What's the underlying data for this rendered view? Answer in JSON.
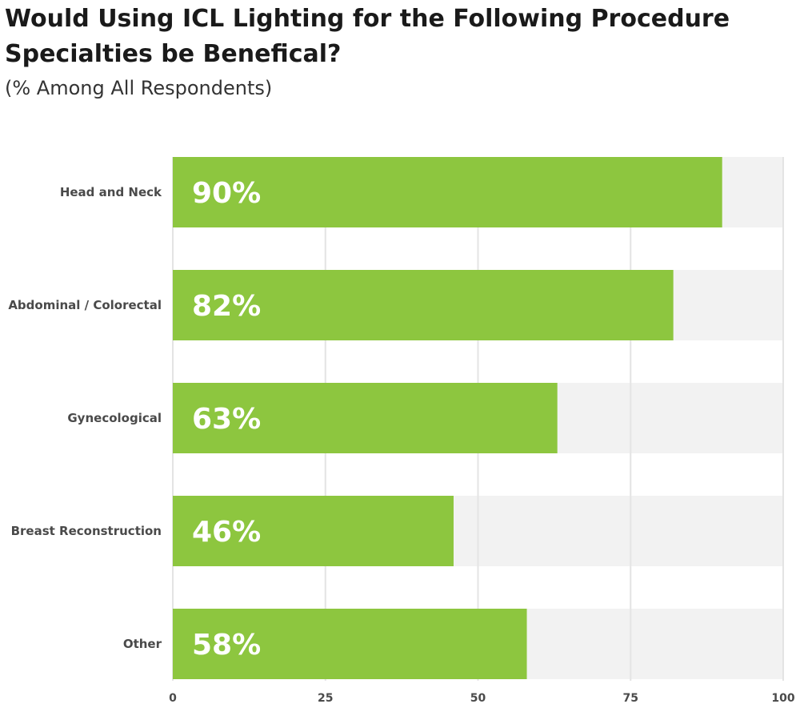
{
  "title": "Would Using ICL Lighting for the Following Procedure Specialties be Benefical?",
  "subtitle": "(% Among All Respondents)",
  "colors": {
    "bar": "#8dc63f",
    "track": "#f2f2f2",
    "grid": "#e4e4e4"
  },
  "chart_data": {
    "type": "bar",
    "orientation": "horizontal",
    "categories": [
      "Head and Neck",
      "Abdominal / Colorectal",
      "Gynecological",
      "Breast Reconstruction",
      "Other"
    ],
    "values": [
      90,
      82,
      63,
      46,
      58
    ],
    "value_labels": [
      "90%",
      "82%",
      "63%",
      "46%",
      "58%"
    ],
    "xlim": [
      0,
      100
    ],
    "xticks": [
      0,
      25,
      50,
      75,
      100
    ],
    "grid": true
  }
}
